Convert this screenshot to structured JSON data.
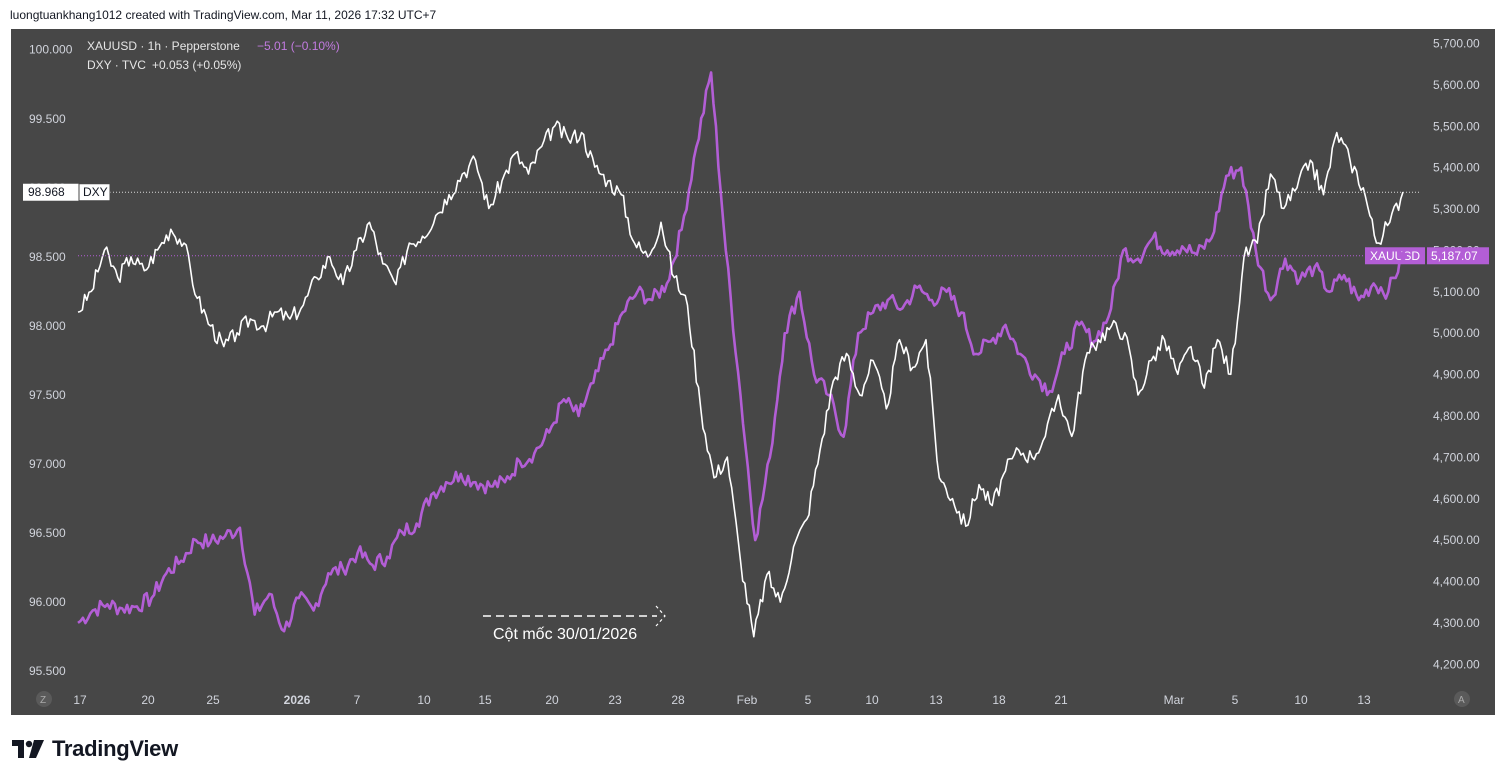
{
  "header": {
    "text": "luongtuankhang1012 created with TradingView.com, Mar 11, 2026 17:32 UTC+7"
  },
  "legend": {
    "xau": {
      "symbol": "XAUUSD · 1h · Pepperstone",
      "change": "−5.01 (−0.10%)"
    },
    "dxy": {
      "symbol": "DXY · TVC",
      "change": "+0.053 (+0.05%)"
    }
  },
  "annotation": {
    "text": "Cột mốc 30/01/2026"
  },
  "scale_buttons": {
    "left": "Z",
    "right": "A"
  },
  "footer": {
    "brand": "TradingView"
  },
  "colors": {
    "background": "#474747",
    "dxy": "#ffffff",
    "xau": "#b35ed6",
    "axis_text": "#d1d4dc"
  },
  "chart_data": {
    "type": "line",
    "x_ticks": [
      "17",
      "20",
      "25",
      "2026",
      "7",
      "10",
      "15",
      "20",
      "23",
      "28",
      "Feb",
      "5",
      "10",
      "13",
      "18",
      "21",
      "Mar",
      "5",
      "10",
      "13"
    ],
    "left_axis": {
      "series": "DXY",
      "ylim": [
        95.4,
        100.15
      ],
      "ticks": [
        "100.000",
        "99.500",
        "99.000",
        "98.500",
        "98.000",
        "97.500",
        "97.000",
        "96.500",
        "96.000",
        "95.500"
      ],
      "last_value": "98.968",
      "last_label": "DXY"
    },
    "right_axis": {
      "series": "XAUUSD",
      "ylim": [
        4150,
        5735
      ],
      "ticks": [
        "5,700.00",
        "5,600.00",
        "5,500.00",
        "5,400.00",
        "5,300.00",
        "5,200.00",
        "5,100.00",
        "5,000.00",
        "4,900.00",
        "4,800.00",
        "4,700.00",
        "4,600.00",
        "4,500.00",
        "4,400.00",
        "4,300.00",
        "4,200.00"
      ],
      "last_value": "5,187.07",
      "last_label": "XAUUSD"
    },
    "series": [
      {
        "name": "DXY",
        "axis": "left",
        "values": [
          [
            0,
            98.1
          ],
          [
            1,
            98.25
          ],
          [
            2,
            98.55
          ],
          [
            3,
            98.35
          ],
          [
            4,
            98.5
          ],
          [
            5,
            98.4
          ],
          [
            6,
            98.55
          ],
          [
            7,
            98.7
          ],
          [
            8,
            98.6
          ],
          [
            9,
            98.2
          ],
          [
            10,
            98.0
          ],
          [
            11,
            97.85
          ],
          [
            12,
            97.95
          ],
          [
            13,
            98.05
          ],
          [
            14,
            98.0
          ],
          [
            15,
            98.1
          ],
          [
            16,
            98.05
          ],
          [
            17,
            98.15
          ],
          [
            18,
            98.35
          ],
          [
            19,
            98.5
          ],
          [
            20,
            98.3
          ],
          [
            21,
            98.55
          ],
          [
            22,
            98.75
          ],
          [
            23,
            98.45
          ],
          [
            24,
            98.3
          ],
          [
            25,
            98.6
          ],
          [
            26,
            98.65
          ],
          [
            27,
            98.8
          ],
          [
            28,
            98.95
          ],
          [
            29,
            99.1
          ],
          [
            30,
            99.2
          ],
          [
            31,
            98.85
          ],
          [
            32,
            99.05
          ],
          [
            33,
            99.25
          ],
          [
            34,
            99.1
          ],
          [
            35,
            99.3
          ],
          [
            36,
            99.45
          ],
          [
            37,
            99.35
          ],
          [
            38,
            99.4
          ],
          [
            39,
            99.15
          ],
          [
            40,
            99.05
          ],
          [
            41,
            98.95
          ],
          [
            42,
            98.6
          ],
          [
            43,
            98.5
          ],
          [
            44,
            98.75
          ],
          [
            45,
            98.35
          ],
          [
            46,
            98.15
          ],
          [
            47,
            97.4
          ],
          [
            48,
            96.9
          ],
          [
            49,
            97.05
          ],
          [
            50,
            96.3
          ],
          [
            51,
            95.75
          ],
          [
            52,
            96.2
          ],
          [
            53,
            96.0
          ],
          [
            54,
            96.4
          ],
          [
            55,
            96.6
          ],
          [
            56,
            97.1
          ],
          [
            57,
            97.6
          ],
          [
            58,
            97.8
          ],
          [
            59,
            97.5
          ],
          [
            60,
            97.75
          ],
          [
            61,
            97.4
          ],
          [
            62,
            97.9
          ],
          [
            63,
            97.7
          ],
          [
            64,
            97.9
          ],
          [
            65,
            96.9
          ],
          [
            66,
            96.75
          ],
          [
            67,
            96.55
          ],
          [
            68,
            96.85
          ],
          [
            69,
            96.7
          ],
          [
            70,
            96.95
          ],
          [
            71,
            97.1
          ],
          [
            72,
            97.05
          ],
          [
            73,
            97.2
          ],
          [
            74,
            97.5
          ],
          [
            75,
            97.2
          ],
          [
            76,
            97.75
          ],
          [
            77,
            97.9
          ],
          [
            78,
            98.0
          ],
          [
            79,
            97.95
          ],
          [
            80,
            97.5
          ],
          [
            81,
            97.75
          ],
          [
            82,
            97.9
          ],
          [
            83,
            97.65
          ],
          [
            84,
            97.85
          ],
          [
            85,
            97.55
          ],
          [
            86,
            97.9
          ],
          [
            87,
            97.65
          ],
          [
            88,
            98.5
          ],
          [
            89,
            98.6
          ],
          [
            90,
            99.1
          ],
          [
            91,
            98.85
          ],
          [
            92,
            99.0
          ],
          [
            93,
            99.2
          ],
          [
            94,
            98.95
          ],
          [
            95,
            99.4
          ],
          [
            96,
            99.2
          ],
          [
            97,
            99.0
          ],
          [
            98,
            98.6
          ],
          [
            99,
            98.75
          ],
          [
            100,
            98.97
          ]
        ]
      },
      {
        "name": "XAUUSD",
        "axis": "right",
        "values": [
          [
            0,
            4300
          ],
          [
            1,
            4330
          ],
          [
            2,
            4345
          ],
          [
            3,
            4335
          ],
          [
            4,
            4340
          ],
          [
            5,
            4360
          ],
          [
            6,
            4420
          ],
          [
            7,
            4450
          ],
          [
            8,
            4500
          ],
          [
            9,
            4495
          ],
          [
            10,
            4510
          ],
          [
            11,
            4530
          ],
          [
            12,
            4320
          ],
          [
            13,
            4370
          ],
          [
            14,
            4280
          ],
          [
            15,
            4360
          ],
          [
            16,
            4330
          ],
          [
            17,
            4420
          ],
          [
            18,
            4430
          ],
          [
            19,
            4470
          ],
          [
            20,
            4440
          ],
          [
            21,
            4460
          ],
          [
            22,
            4520
          ],
          [
            23,
            4540
          ],
          [
            24,
            4610
          ],
          [
            25,
            4640
          ],
          [
            26,
            4660
          ],
          [
            27,
            4640
          ],
          [
            28,
            4630
          ],
          [
            29,
            4640
          ],
          [
            30,
            4690
          ],
          [
            31,
            4710
          ],
          [
            32,
            4760
          ],
          [
            33,
            4840
          ],
          [
            34,
            4800
          ],
          [
            35,
            4880
          ],
          [
            36,
            4960
          ],
          [
            37,
            5050
          ],
          [
            38,
            5100
          ],
          [
            39,
            5080
          ],
          [
            40,
            5120
          ],
          [
            41,
            5250
          ],
          [
            42,
            5450
          ],
          [
            43,
            5630
          ],
          [
            44,
            5200
          ],
          [
            45,
            4850
          ],
          [
            46,
            4500
          ],
          [
            47,
            4700
          ],
          [
            48,
            5000
          ],
          [
            49,
            5100
          ],
          [
            50,
            4900
          ],
          [
            51,
            4850
          ],
          [
            52,
            4750
          ],
          [
            53,
            5000
          ],
          [
            54,
            5050
          ],
          [
            55,
            5080
          ],
          [
            56,
            5060
          ],
          [
            57,
            5110
          ],
          [
            58,
            5080
          ],
          [
            59,
            5100
          ],
          [
            60,
            5050
          ],
          [
            61,
            4950
          ],
          [
            62,
            4980
          ],
          [
            63,
            5020
          ],
          [
            64,
            4950
          ],
          [
            65,
            4900
          ],
          [
            66,
            4860
          ],
          [
            67,
            4950
          ],
          [
            68,
            5020
          ],
          [
            69,
            4980
          ],
          [
            70,
            5040
          ],
          [
            71,
            5200
          ],
          [
            72,
            5180
          ],
          [
            73,
            5230
          ],
          [
            74,
            5200
          ],
          [
            75,
            5210
          ],
          [
            76,
            5190
          ],
          [
            77,
            5230
          ],
          [
            78,
            5380
          ],
          [
            79,
            5400
          ],
          [
            80,
            5200
          ],
          [
            81,
            5080
          ],
          [
            82,
            5180
          ],
          [
            83,
            5130
          ],
          [
            84,
            5160
          ],
          [
            85,
            5100
          ],
          [
            86,
            5140
          ],
          [
            87,
            5080
          ],
          [
            88,
            5120
          ],
          [
            89,
            5100
          ],
          [
            90,
            5187
          ]
        ]
      }
    ]
  }
}
